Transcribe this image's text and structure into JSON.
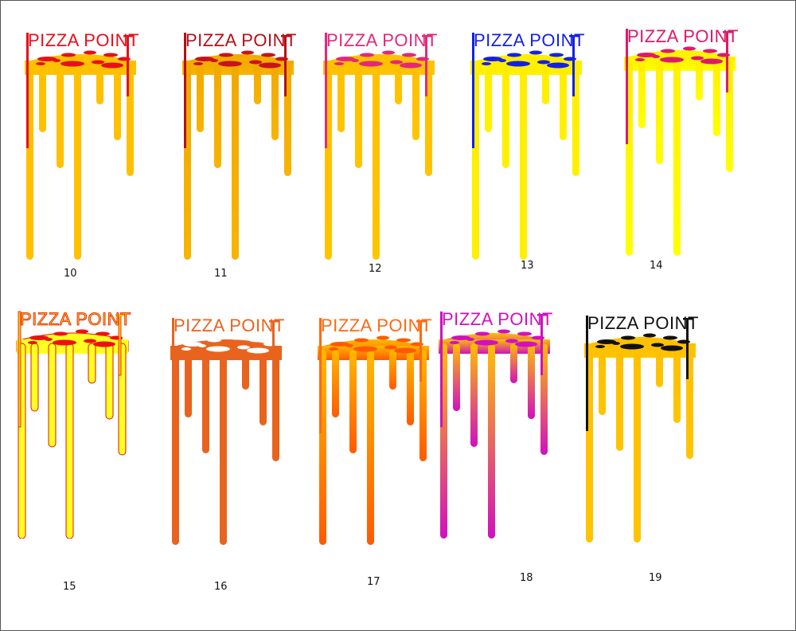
{
  "sheet": {
    "variants": [
      {
        "number": "10",
        "brand": "PIZZA POINT",
        "cheese_top": "#ffc000",
        "cheese_bottom": "#ffc000",
        "text": "#e5101c",
        "spots": "#e5101c",
        "outline": ""
      },
      {
        "number": "11",
        "brand": "PIZZA POINT",
        "cheese_top": "#f2a900",
        "cheese_bottom": "#f7b400",
        "text": "#b50f18",
        "spots": "#c8121c",
        "outline": ""
      },
      {
        "number": "12",
        "brand": "PIZZA POINT",
        "cheese_top": "#ffc000",
        "cheese_bottom": "#ffc400",
        "text": "#e3287a",
        "spots": "#e3287a",
        "outline": ""
      },
      {
        "number": "13",
        "brand": "PIZZA POINT",
        "cheese_top": "#ffee00",
        "cheese_bottom": "#fff000",
        "text": "#1420e6",
        "spots": "#1420e6",
        "outline": ""
      },
      {
        "number": "14",
        "brand": "PIZZA POINT",
        "cheese_top": "#fff000",
        "cheese_bottom": "#ffff00",
        "text": "#e0186a",
        "spots": "#e0186a",
        "outline": ""
      },
      {
        "number": "15",
        "brand": "PIZZA POINT",
        "cheese_top": "#ffff20",
        "cheese_bottom": "#ffff20",
        "text": "#ffc800",
        "spots": "#ee1010",
        "outline": "#e01010"
      },
      {
        "number": "16",
        "brand": "PIZZA POINT",
        "cheese_top": "#e8641e",
        "cheese_bottom": "#e8641e",
        "text": "#e8641e",
        "spots": "#ffffff",
        "outline": ""
      },
      {
        "number": "17",
        "brand": "PIZZA POINT",
        "cheese_top": "#ffb800",
        "cheese_bottom": "#ff5a00",
        "text": "#ff6a10",
        "spots": "#ff5a00",
        "outline": ""
      },
      {
        "number": "18",
        "brand": "PIZZA POINT",
        "cheese_top": "#ffc000",
        "cheese_bottom": "#d010c0",
        "text": "#d010c0",
        "spots": "#d010c0",
        "outline": ""
      },
      {
        "number": "19",
        "brand": "PIZZA POINT",
        "cheese_top": "#ffc000",
        "cheese_bottom": "#ffc400",
        "text": "#111111",
        "spots": "#111111",
        "outline": ""
      }
    ]
  }
}
